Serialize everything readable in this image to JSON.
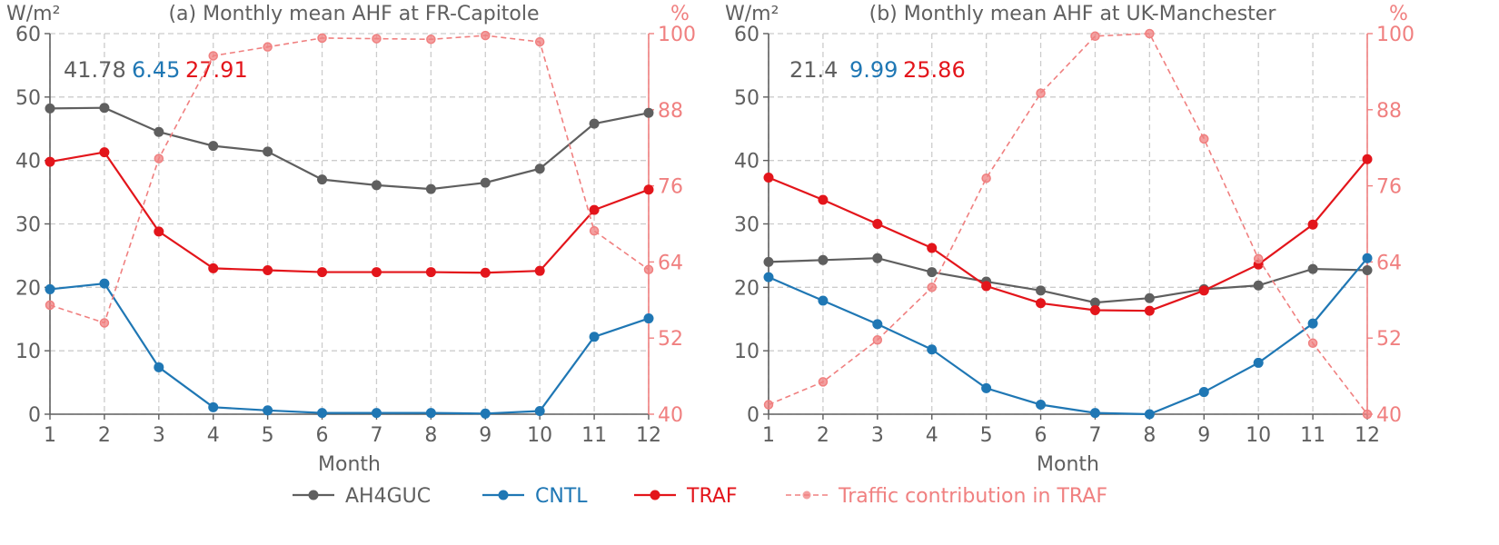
{
  "colors": {
    "ah4guc": "#5f5f5f",
    "cntl": "#1f77b4",
    "traf": "#e3151b",
    "traffic_contribution": "#f08080",
    "axis": "#5f5f5f",
    "grid": "#cccccc"
  },
  "legend": {
    "placement": "bottom-center",
    "entries": [
      "AH4GUC",
      "CNTL",
      "TRAF",
      "Traffic contribution in TRAF"
    ]
  },
  "chart_data": [
    {
      "type": "line",
      "title": "(a) Monthly mean AHF at FR-Capitole",
      "xlabel": "Month",
      "ylabel": "W/m²",
      "y2label": "%",
      "x": [
        1,
        2,
        3,
        4,
        5,
        6,
        7,
        8,
        9,
        10,
        11,
        12
      ],
      "xlim": [
        1,
        12
      ],
      "ylim": [
        0,
        60
      ],
      "y2lim": [
        40,
        100
      ],
      "yticks": [
        0,
        10,
        20,
        30,
        40,
        50,
        60
      ],
      "y2ticks": [
        40,
        52,
        64,
        76,
        88,
        100
      ],
      "grid": true,
      "annotations": [
        "41.78",
        "6.45",
        "27.91"
      ],
      "series": [
        {
          "name": "AH4GUC",
          "axis": "left",
          "values": [
            48.2,
            48.3,
            44.5,
            42.3,
            41.4,
            37.0,
            36.1,
            35.5,
            36.5,
            38.7,
            45.8,
            47.5
          ]
        },
        {
          "name": "CNTL",
          "axis": "left",
          "values": [
            19.7,
            20.6,
            7.4,
            1.1,
            0.6,
            0.2,
            0.2,
            0.2,
            0.1,
            0.5,
            12.2,
            15.1
          ]
        },
        {
          "name": "TRAF",
          "axis": "left",
          "values": [
            39.8,
            41.3,
            28.8,
            23.0,
            22.7,
            22.4,
            22.4,
            22.4,
            22.3,
            22.6,
            32.2,
            35.4
          ]
        },
        {
          "name": "Traffic contribution in TRAF",
          "axis": "right",
          "values": [
            57.2,
            54.4,
            80.3,
            96.5,
            97.9,
            99.3,
            99.2,
            99.1,
            99.7,
            98.7,
            68.9,
            62.8
          ]
        }
      ]
    },
    {
      "type": "line",
      "title": "(b) Monthly mean AHF at UK-Manchester",
      "xlabel": "Month",
      "ylabel": "W/m²",
      "y2label": "%",
      "x": [
        1,
        2,
        3,
        4,
        5,
        6,
        7,
        8,
        9,
        10,
        11,
        12
      ],
      "xlim": [
        1,
        12
      ],
      "ylim": [
        0,
        60
      ],
      "y2lim": [
        40,
        100
      ],
      "yticks": [
        0,
        10,
        20,
        30,
        40,
        50,
        60
      ],
      "y2ticks": [
        40,
        52,
        64,
        76,
        88,
        100
      ],
      "grid": true,
      "annotations": [
        "21.4",
        "9.99",
        "25.86"
      ],
      "series": [
        {
          "name": "AH4GUC",
          "axis": "left",
          "values": [
            24.0,
            24.3,
            24.6,
            22.4,
            20.9,
            19.5,
            17.6,
            18.3,
            19.7,
            20.3,
            22.9,
            22.7
          ]
        },
        {
          "name": "CNTL",
          "axis": "left",
          "values": [
            21.6,
            17.9,
            14.2,
            10.2,
            4.1,
            1.5,
            0.2,
            0.0,
            3.5,
            8.1,
            14.3,
            24.6
          ]
        },
        {
          "name": "TRAF",
          "axis": "left",
          "values": [
            37.3,
            33.8,
            30.0,
            26.2,
            20.2,
            17.5,
            16.4,
            16.3,
            19.5,
            23.6,
            29.9,
            40.2
          ]
        },
        {
          "name": "Traffic contribution in TRAF",
          "axis": "right",
          "values": [
            41.5,
            45.1,
            51.7,
            60.0,
            77.2,
            90.6,
            99.6,
            100.0,
            83.4,
            64.5,
            51.2,
            40.0
          ]
        }
      ]
    }
  ]
}
